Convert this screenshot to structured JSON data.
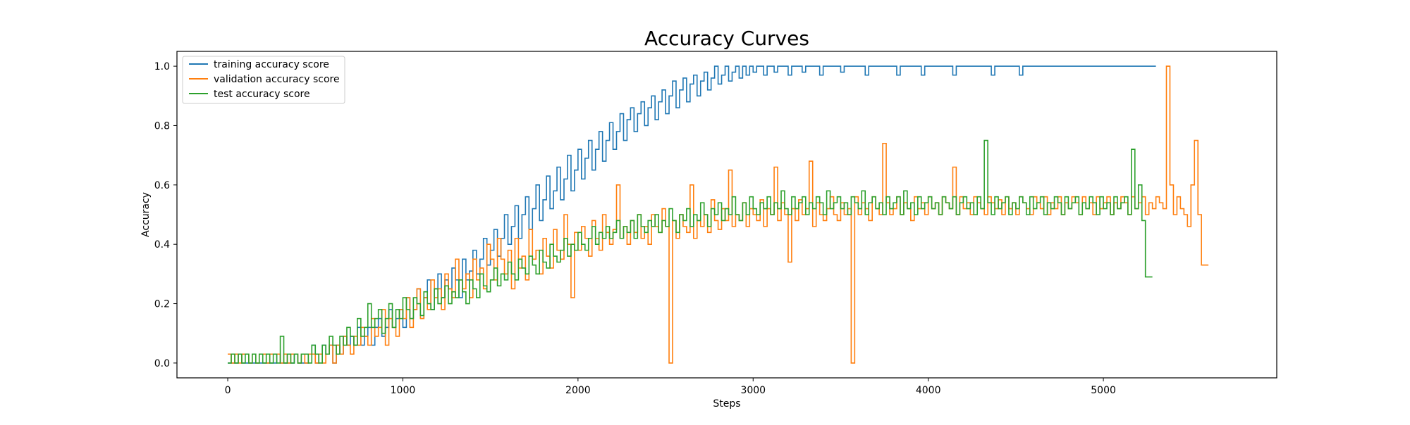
{
  "chart_data": {
    "type": "line",
    "title": "Accuracy Curves",
    "xlabel": "Steps",
    "ylabel": "Accuracy",
    "xlim": [
      -290,
      5990
    ],
    "ylim": [
      -0.05,
      1.05
    ],
    "x_ticks": [
      0,
      1000,
      2000,
      3000,
      4000,
      5000
    ],
    "y_ticks": [
      0.0,
      0.2,
      0.4,
      0.6,
      0.8,
      1.0
    ],
    "x_tick_labels": [
      "0",
      "1000",
      "2000",
      "3000",
      "4000",
      "5000"
    ],
    "y_tick_labels": [
      "0.0",
      "0.2",
      "0.4",
      "0.6",
      "0.8",
      "1.0"
    ],
    "grid": false,
    "legend_position": "top-left",
    "series": [
      {
        "name": "training accuracy score",
        "color": "#1f77b4",
        "step": 20,
        "x_start": 0,
        "values": [
          0,
          0,
          0,
          0.03,
          0,
          0,
          0,
          0,
          0,
          0,
          0,
          0,
          0,
          0,
          0.03,
          0,
          0,
          0,
          0,
          0.03,
          0,
          0,
          0,
          0.03,
          0.06,
          0,
          0.03,
          0.06,
          0.03,
          0.06,
          0,
          0.06,
          0.03,
          0.09,
          0.06,
          0.09,
          0.06,
          0.12,
          0.06,
          0.09,
          0.12,
          0.06,
          0.12,
          0.15,
          0.09,
          0.12,
          0.18,
          0.12,
          0.15,
          0.18,
          0.12,
          0.22,
          0.15,
          0.18,
          0.25,
          0.15,
          0.22,
          0.28,
          0.18,
          0.25,
          0.3,
          0.22,
          0.28,
          0.25,
          0.32,
          0.28,
          0.22,
          0.35,
          0.28,
          0.31,
          0.38,
          0.3,
          0.35,
          0.42,
          0.33,
          0.38,
          0.45,
          0.36,
          0.42,
          0.5,
          0.4,
          0.46,
          0.53,
          0.42,
          0.5,
          0.56,
          0.45,
          0.52,
          0.6,
          0.48,
          0.55,
          0.63,
          0.52,
          0.58,
          0.66,
          0.55,
          0.62,
          0.7,
          0.58,
          0.65,
          0.72,
          0.62,
          0.69,
          0.75,
          0.65,
          0.72,
          0.78,
          0.68,
          0.75,
          0.81,
          0.72,
          0.78,
          0.84,
          0.75,
          0.82,
          0.86,
          0.78,
          0.84,
          0.88,
          0.8,
          0.86,
          0.9,
          0.82,
          0.88,
          0.92,
          0.84,
          0.9,
          0.95,
          0.86,
          0.92,
          0.96,
          0.88,
          0.94,
          0.97,
          0.9,
          0.95,
          0.98,
          0.92,
          0.96,
          1.0,
          0.94,
          0.97,
          1.0,
          0.95,
          0.98,
          1.0,
          0.96,
          1.0,
          0.97,
          1.0,
          0.98,
          1.0,
          1.0,
          0.97,
          1.0,
          1.0,
          0.98,
          1.0,
          1.0,
          1.0,
          0.97,
          1.0,
          1.0,
          1.0,
          0.98,
          1.0,
          1.0,
          1.0,
          1.0,
          0.97,
          1.0,
          1.0,
          1.0,
          1.0,
          1.0,
          0.98,
          1.0,
          1.0,
          1.0,
          1.0,
          1.0,
          1.0,
          0.97,
          1.0,
          1.0,
          1.0,
          1.0,
          1.0,
          1.0,
          1.0,
          1.0,
          0.97,
          1.0,
          1.0,
          1.0,
          1.0,
          1.0,
          1.0,
          0.97,
          1.0,
          1.0,
          1.0,
          1.0,
          1.0,
          1.0,
          1.0,
          1.0,
          0.97,
          1.0,
          1.0,
          1.0,
          1.0,
          1.0,
          1.0,
          1.0,
          1.0,
          1.0,
          1.0,
          0.97,
          1.0,
          1.0,
          1.0,
          1.0,
          1.0,
          1.0,
          1.0,
          0.97,
          1.0,
          1.0,
          1.0,
          1.0,
          1.0,
          1.0,
          1.0,
          1.0,
          1.0,
          1.0,
          1.0,
          1.0,
          1.0,
          1.0,
          1.0,
          1.0,
          1.0,
          1.0,
          1.0,
          1.0,
          1.0,
          1.0,
          1.0,
          1.0,
          1.0,
          1.0,
          1.0,
          1.0,
          1.0,
          1.0,
          1.0,
          1.0,
          1.0,
          1.0,
          1.0,
          1.0,
          1.0,
          1.0
        ]
      },
      {
        "name": "validation accuracy score",
        "color": "#ff7f0e",
        "step": 20,
        "x_start": 0,
        "values": [
          0.03,
          0,
          0.03,
          0,
          0.03,
          0.03,
          0,
          0.03,
          0,
          0.03,
          0.03,
          0,
          0.03,
          0.03,
          0.03,
          0,
          0.03,
          0,
          0.03,
          0.03,
          0,
          0.03,
          0,
          0.03,
          0.03,
          0,
          0.03,
          0,
          0.03,
          0.06,
          0,
          0.06,
          0.03,
          0.09,
          0.06,
          0.03,
          0.09,
          0.06,
          0.12,
          0.09,
          0.06,
          0.15,
          0.09,
          0.12,
          0.18,
          0.06,
          0.15,
          0.12,
          0.09,
          0.18,
          0.15,
          0.22,
          0.12,
          0.18,
          0.25,
          0.15,
          0.22,
          0.18,
          0.28,
          0.22,
          0.25,
          0.18,
          0.3,
          0.25,
          0.22,
          0.35,
          0.28,
          0.25,
          0.3,
          0.22,
          0.35,
          0.28,
          0.32,
          0.25,
          0.4,
          0.35,
          0.28,
          0.42,
          0.35,
          0.3,
          0.38,
          0.25,
          0.42,
          0.32,
          0.36,
          0.28,
          0.45,
          0.35,
          0.38,
          0.3,
          0.42,
          0.36,
          0.32,
          0.45,
          0.38,
          0.35,
          0.5,
          0.4,
          0.22,
          0.44,
          0.38,
          0.46,
          0.42,
          0.36,
          0.48,
          0.42,
          0.38,
          0.5,
          0.44,
          0.4,
          0.45,
          0.6,
          0.42,
          0.46,
          0.4,
          0.48,
          0.44,
          0.5,
          0.42,
          0.46,
          0.4,
          0.5,
          0.46,
          0.44,
          0.52,
          0.46,
          0,
          0.48,
          0.42,
          0.5,
          0.46,
          0.44,
          0.6,
          0.42,
          0.48,
          0.46,
          0.5,
          0.44,
          0.55,
          0.48,
          0.45,
          0.52,
          0.48,
          0.65,
          0.46,
          0.5,
          0.48,
          0.54,
          0.46,
          0.52,
          0.5,
          0.48,
          0.55,
          0.46,
          0.52,
          0.5,
          0.66,
          0.48,
          0.54,
          0.5,
          0.34,
          0.52,
          0.48,
          0.55,
          0.5,
          0.52,
          0.68,
          0.46,
          0.54,
          0.5,
          0.48,
          0.52,
          0.56,
          0.5,
          0.48,
          0.54,
          0.5,
          0.52,
          0,
          0.56,
          0.5,
          0.54,
          0.52,
          0.48,
          0.56,
          0.52,
          0.5,
          0.74,
          0.54,
          0.5,
          0.52,
          0.56,
          0.5,
          0.54,
          0.52,
          0.48,
          0.56,
          0.52,
          0.54,
          0.5,
          0.56,
          0.52,
          0.54,
          0.5,
          0.56,
          0.54,
          0.52,
          0.66,
          0.5,
          0.56,
          0.52,
          0.54,
          0.5,
          0.56,
          0.54,
          0.52,
          0.5,
          0.56,
          0.54,
          0.52,
          0.55,
          0.5,
          0.56,
          0.52,
          0.54,
          0.5,
          0.56,
          0.54,
          0.52,
          0.5,
          0.56,
          0.54,
          0.52,
          0.56,
          0.5,
          0.54,
          0.52,
          0.56,
          0.5,
          0.54,
          0.52,
          0.56,
          0.54,
          0.5,
          0.56,
          0.52,
          0.54,
          0.5,
          0.56,
          0.52,
          0.54,
          0.56,
          0.5,
          0.54,
          0.52,
          0.56,
          0.54,
          0.5,
          0.56,
          0.52,
          0.54,
          0.56,
          0.5,
          0.54,
          0.52,
          0.56,
          0.54,
          0.52,
          1.0,
          0.6,
          0.5,
          0.56,
          0.52,
          0.5,
          0.46,
          0.6,
          0.75,
          0.5,
          0.33,
          0.33
        ]
      },
      {
        "name": "test accuracy score",
        "color": "#2ca02c",
        "step": 20,
        "x_start": 0,
        "values": [
          0,
          0.03,
          0,
          0.03,
          0,
          0.03,
          0,
          0.03,
          0,
          0.03,
          0,
          0.03,
          0,
          0.03,
          0,
          0.09,
          0,
          0.03,
          0,
          0.03,
          0,
          0.03,
          0.03,
          0,
          0.06,
          0.03,
          0,
          0.06,
          0.03,
          0.09,
          0.06,
          0.03,
          0.09,
          0.06,
          0.12,
          0.09,
          0.06,
          0.15,
          0.09,
          0.12,
          0.2,
          0.12,
          0.15,
          0.18,
          0.1,
          0.15,
          0.2,
          0.12,
          0.18,
          0.15,
          0.22,
          0.18,
          0.15,
          0.22,
          0.2,
          0.16,
          0.24,
          0.2,
          0.18,
          0.25,
          0.2,
          0.22,
          0.26,
          0.2,
          0.24,
          0.22,
          0.28,
          0.24,
          0.2,
          0.28,
          0.25,
          0.22,
          0.3,
          0.26,
          0.24,
          0.28,
          0.32,
          0.26,
          0.3,
          0.28,
          0.34,
          0.3,
          0.28,
          0.35,
          0.32,
          0.3,
          0.36,
          0.33,
          0.3,
          0.38,
          0.34,
          0.32,
          0.4,
          0.36,
          0.34,
          0.38,
          0.42,
          0.36,
          0.4,
          0.38,
          0.44,
          0.4,
          0.38,
          0.42,
          0.46,
          0.4,
          0.44,
          0.42,
          0.46,
          0.42,
          0.44,
          0.48,
          0.42,
          0.46,
          0.44,
          0.48,
          0.42,
          0.5,
          0.46,
          0.44,
          0.48,
          0.46,
          0.5,
          0.44,
          0.48,
          0.46,
          0.52,
          0.48,
          0.44,
          0.5,
          0.48,
          0.52,
          0.46,
          0.5,
          0.48,
          0.54,
          0.5,
          0.46,
          0.52,
          0.5,
          0.54,
          0.48,
          0.52,
          0.5,
          0.56,
          0.5,
          0.48,
          0.54,
          0.5,
          0.56,
          0.52,
          0.5,
          0.54,
          0.52,
          0.56,
          0.5,
          0.54,
          0.52,
          0.58,
          0.52,
          0.5,
          0.56,
          0.52,
          0.54,
          0.56,
          0.5,
          0.54,
          0.52,
          0.56,
          0.54,
          0.5,
          0.58,
          0.52,
          0.54,
          0.56,
          0.52,
          0.54,
          0.5,
          0.56,
          0.54,
          0.52,
          0.58,
          0.5,
          0.54,
          0.56,
          0.52,
          0.54,
          0.5,
          0.56,
          0.52,
          0.54,
          0.56,
          0.5,
          0.58,
          0.52,
          0.54,
          0.5,
          0.56,
          0.52,
          0.54,
          0.56,
          0.52,
          0.54,
          0.5,
          0.56,
          0.54,
          0.52,
          0.56,
          0.5,
          0.54,
          0.56,
          0.52,
          0.54,
          0.5,
          0.56,
          0.52,
          0.75,
          0.54,
          0.5,
          0.56,
          0.52,
          0.54,
          0.56,
          0.5,
          0.54,
          0.52,
          0.56,
          0.54,
          0.5,
          0.56,
          0.52,
          0.54,
          0.56,
          0.5,
          0.54,
          0.52,
          0.56,
          0.54,
          0.5,
          0.56,
          0.52,
          0.54,
          0.56,
          0.5,
          0.54,
          0.52,
          0.56,
          0.54,
          0.5,
          0.56,
          0.52,
          0.54,
          0.5,
          0.56,
          0.52,
          0.54,
          0.56,
          0.5,
          0.72,
          0.52,
          0.6,
          0.48,
          0.29,
          0.29
        ]
      }
    ]
  }
}
